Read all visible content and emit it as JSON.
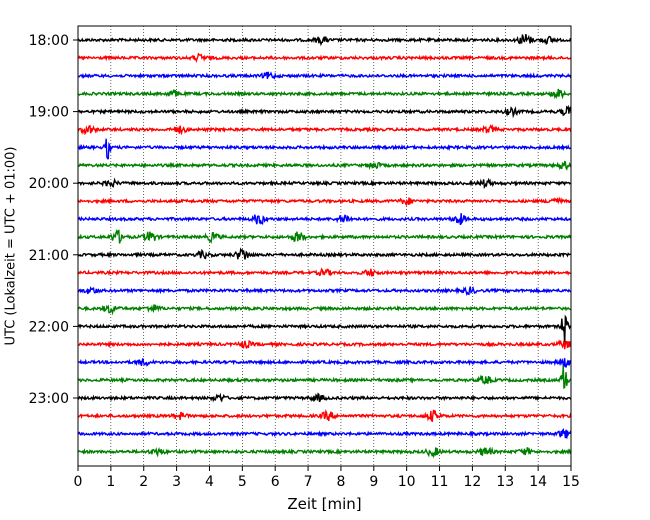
{
  "chart_data": {
    "type": "line",
    "subtype": "helicorder",
    "title": "",
    "xlabel": "Zeit  [min]",
    "ylabel": "UTC (Lokalzeit = UTC + 01:00)",
    "xlim": [
      0,
      15
    ],
    "x_ticks": [
      "0",
      "1",
      "2",
      "3",
      "4",
      "5",
      "6",
      "7",
      "8",
      "9",
      "10",
      "11",
      "12",
      "13",
      "14",
      "15"
    ],
    "y_tick_labels": [
      "18:00",
      "19:00",
      "20:00",
      "21:00",
      "22:00",
      "23:00"
    ],
    "vertical_grid": true,
    "grid_style": "dotted",
    "trace_colors": [
      "#000000",
      "#ff0000",
      "#0000ff",
      "#008000"
    ],
    "traces": [
      {
        "start": "18:00",
        "color": "#000000",
        "events": [
          {
            "x": 7.4,
            "amp": 3
          },
          {
            "x": 13.6,
            "amp": 6
          },
          {
            "x": 14.3,
            "amp": 3
          }
        ]
      },
      {
        "start": "18:15",
        "color": "#ff0000",
        "events": [
          {
            "x": 3.7,
            "amp": 3
          }
        ]
      },
      {
        "start": "18:30",
        "color": "#0000ff",
        "events": [
          {
            "x": 5.8,
            "amp": 3
          }
        ]
      },
      {
        "start": "18:45",
        "color": "#008000",
        "events": [
          {
            "x": 2.9,
            "amp": 3
          },
          {
            "x": 14.6,
            "amp": 4
          }
        ]
      },
      {
        "start": "19:00",
        "color": "#000000",
        "events": [
          {
            "x": 13.2,
            "amp": 3
          },
          {
            "x": 14.9,
            "amp": 4
          }
        ]
      },
      {
        "start": "19:15",
        "color": "#ff0000",
        "events": [
          {
            "x": 0.3,
            "amp": 4
          },
          {
            "x": 3.1,
            "amp": 3
          },
          {
            "x": 12.5,
            "amp": 3
          }
        ]
      },
      {
        "start": "19:30",
        "color": "#0000ff",
        "events": [
          {
            "x": 0.9,
            "amp": 11
          }
        ]
      },
      {
        "start": "19:45",
        "color": "#008000",
        "events": [
          {
            "x": 9.0,
            "amp": 3
          },
          {
            "x": 14.8,
            "amp": 3
          }
        ]
      },
      {
        "start": "20:00",
        "color": "#000000",
        "events": [
          {
            "x": 1.0,
            "amp": 3
          },
          {
            "x": 12.4,
            "amp": 3
          }
        ]
      },
      {
        "start": "20:15",
        "color": "#ff0000",
        "events": [
          {
            "x": 10.0,
            "amp": 3
          },
          {
            "x": 14.5,
            "amp": 3
          }
        ]
      },
      {
        "start": "20:30",
        "color": "#0000ff",
        "events": [
          {
            "x": 5.5,
            "amp": 5
          },
          {
            "x": 8.1,
            "amp": 4
          },
          {
            "x": 11.6,
            "amp": 5
          }
        ]
      },
      {
        "start": "20:45",
        "color": "#008000",
        "events": [
          {
            "x": 1.2,
            "amp": 6
          },
          {
            "x": 2.2,
            "amp": 5
          },
          {
            "x": 4.1,
            "amp": 4
          },
          {
            "x": 6.7,
            "amp": 5
          }
        ]
      },
      {
        "start": "21:00",
        "color": "#000000",
        "events": [
          {
            "x": 5.0,
            "amp": 6
          },
          {
            "x": 3.8,
            "amp": 3
          }
        ]
      },
      {
        "start": "21:15",
        "color": "#ff0000",
        "events": [
          {
            "x": 7.5,
            "amp": 3
          },
          {
            "x": 8.9,
            "amp": 3
          }
        ]
      },
      {
        "start": "21:30",
        "color": "#0000ff",
        "events": [
          {
            "x": 0.4,
            "amp": 3
          },
          {
            "x": 11.9,
            "amp": 3
          }
        ]
      },
      {
        "start": "21:45",
        "color": "#008000",
        "events": [
          {
            "x": 1.0,
            "amp": 4
          },
          {
            "x": 2.3,
            "amp": 3
          }
        ]
      },
      {
        "start": "22:00",
        "color": "#000000",
        "events": [
          {
            "x": 14.8,
            "amp": 20
          }
        ]
      },
      {
        "start": "22:15",
        "color": "#ff0000",
        "events": [
          {
            "x": 5.1,
            "amp": 3
          },
          {
            "x": 14.8,
            "amp": 4
          }
        ]
      },
      {
        "start": "22:30",
        "color": "#0000ff",
        "events": [
          {
            "x": 2.0,
            "amp": 3
          },
          {
            "x": 14.8,
            "amp": 4
          }
        ]
      },
      {
        "start": "22:45",
        "color": "#008000",
        "events": [
          {
            "x": 12.4,
            "amp": 4
          },
          {
            "x": 14.8,
            "amp": 18
          }
        ]
      },
      {
        "start": "23:00",
        "color": "#000000",
        "events": [
          {
            "x": 4.3,
            "amp": 3
          },
          {
            "x": 7.3,
            "amp": 3
          }
        ]
      },
      {
        "start": "23:15",
        "color": "#ff0000",
        "events": [
          {
            "x": 3.1,
            "amp": 3
          },
          {
            "x": 7.6,
            "amp": 4
          },
          {
            "x": 10.8,
            "amp": 5
          }
        ]
      },
      {
        "start": "23:30",
        "color": "#0000ff",
        "events": [
          {
            "x": 14.8,
            "amp": 4
          }
        ]
      },
      {
        "start": "23:45",
        "color": "#008000",
        "events": [
          {
            "x": 2.4,
            "amp": 3
          },
          {
            "x": 10.8,
            "amp": 4
          },
          {
            "x": 12.4,
            "amp": 4
          },
          {
            "x": 13.6,
            "amp": 3
          }
        ]
      }
    ]
  }
}
